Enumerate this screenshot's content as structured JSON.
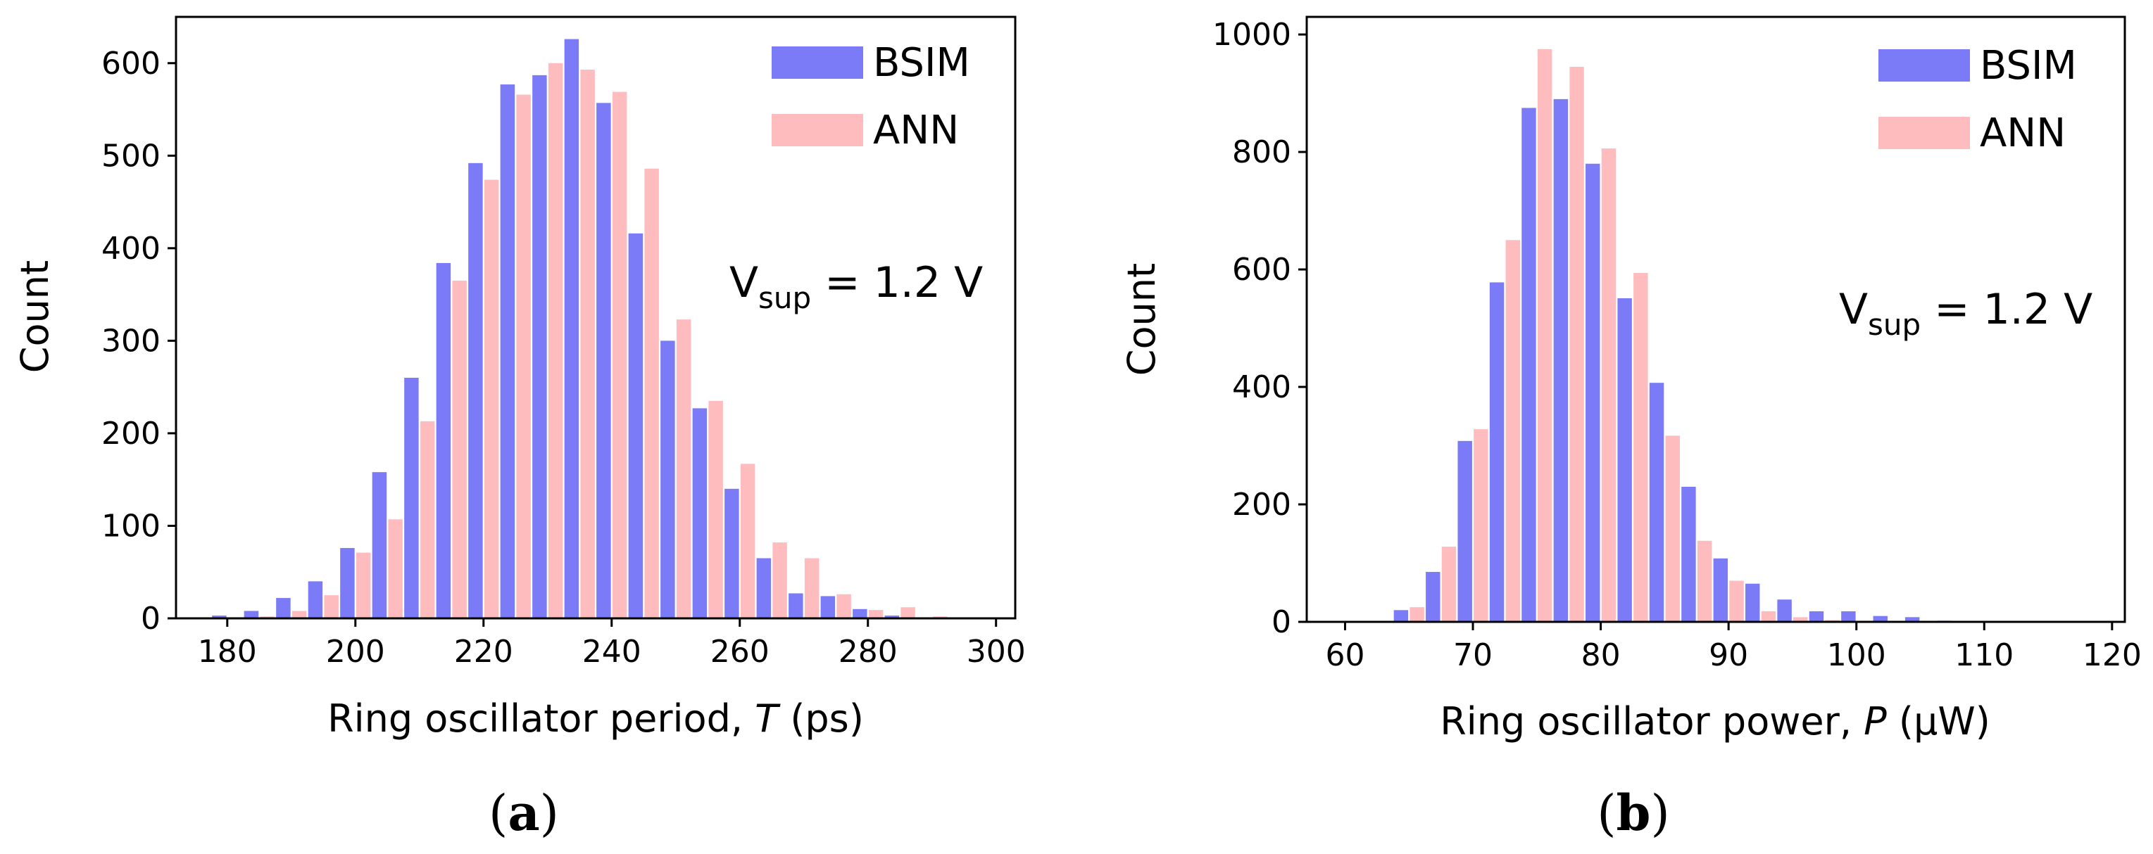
{
  "colors": {
    "bsim": "#7b7bf8",
    "ann": "#ffbcbf",
    "axis": "#000000"
  },
  "chart_data": [
    {
      "type": "bar",
      "panel_label": "a",
      "xlabel_prefix": "Ring oscillator period, ",
      "xlabel_var": "T",
      "xlabel_suffix": " (ps)",
      "ylabel": "Count",
      "xlim": [
        172,
        303
      ],
      "ylim": [
        0,
        650
      ],
      "xticks": [
        180,
        200,
        220,
        240,
        260,
        280,
        300
      ],
      "yticks": [
        0,
        100,
        200,
        300,
        400,
        500,
        600
      ],
      "bin_width": 5,
      "annotation": {
        "base": "V",
        "sub": "sup",
        "rest": " = 1.2 V"
      },
      "legend": [
        "BSIM",
        "ANN"
      ],
      "series": [
        {
          "name": "BSIM",
          "x": [
            180,
            185,
            190,
            195,
            200,
            205,
            210,
            215,
            220,
            225,
            230,
            235,
            240,
            245,
            250,
            255,
            260,
            265,
            270,
            275,
            280,
            285,
            290,
            295
          ],
          "values": [
            3,
            8,
            22,
            40,
            76,
            158,
            260,
            384,
            492,
            577,
            587,
            626,
            557,
            416,
            300,
            227,
            140,
            65,
            27,
            24,
            10,
            3,
            1,
            0
          ]
        },
        {
          "name": "ANN",
          "x": [
            180,
            185,
            190,
            195,
            200,
            205,
            210,
            215,
            220,
            225,
            230,
            235,
            240,
            245,
            250,
            255,
            260,
            265,
            270,
            275,
            280,
            285,
            290,
            295
          ],
          "values": [
            1,
            2,
            8,
            25,
            71,
            107,
            213,
            365,
            474,
            566,
            600,
            593,
            569,
            486,
            323,
            235,
            167,
            82,
            65,
            26,
            9,
            12,
            2,
            1
          ]
        }
      ]
    },
    {
      "type": "bar",
      "panel_label": "b",
      "xlabel_prefix": "Ring oscillator power, ",
      "xlabel_var": "P",
      "xlabel_suffix": " (µW)",
      "ylabel": "Count",
      "xlim": [
        57,
        121
      ],
      "ylim": [
        0,
        1030
      ],
      "xticks": [
        60,
        70,
        80,
        90,
        100,
        110,
        120
      ],
      "yticks": [
        0,
        200,
        400,
        600,
        800,
        1000
      ],
      "bin_width": 2.5,
      "annotation": {
        "base": "V",
        "sub": "sup",
        "rest": " = 1.2 V"
      },
      "legend": [
        "BSIM",
        "ANN"
      ],
      "series": [
        {
          "name": "BSIM",
          "x": [
            62.5,
            65,
            67.5,
            70,
            72.5,
            75,
            77.5,
            80,
            82.5,
            85,
            87.5,
            90,
            92.5,
            95,
            97.5,
            100,
            102.5,
            105,
            107.5,
            110,
            112.5,
            115,
            117.5
          ],
          "values": [
            0,
            20,
            85,
            308,
            578,
            875,
            890,
            780,
            551,
            407,
            230,
            108,
            65,
            38,
            18,
            18,
            10,
            8,
            2,
            0,
            0,
            0,
            0
          ]
        },
        {
          "name": "ANN",
          "x": [
            62.5,
            65,
            67.5,
            70,
            72.5,
            75,
            77.5,
            80,
            82.5,
            85,
            87.5,
            90,
            92.5,
            95,
            97.5,
            100,
            102.5,
            105,
            107.5,
            110,
            112.5,
            115,
            117.5
          ],
          "values": [
            0,
            25,
            128,
            328,
            650,
            975,
            945,
            806,
            594,
            317,
            138,
            70,
            18,
            8,
            3,
            2,
            1,
            0,
            0,
            0,
            0,
            0,
            0
          ]
        }
      ]
    }
  ]
}
